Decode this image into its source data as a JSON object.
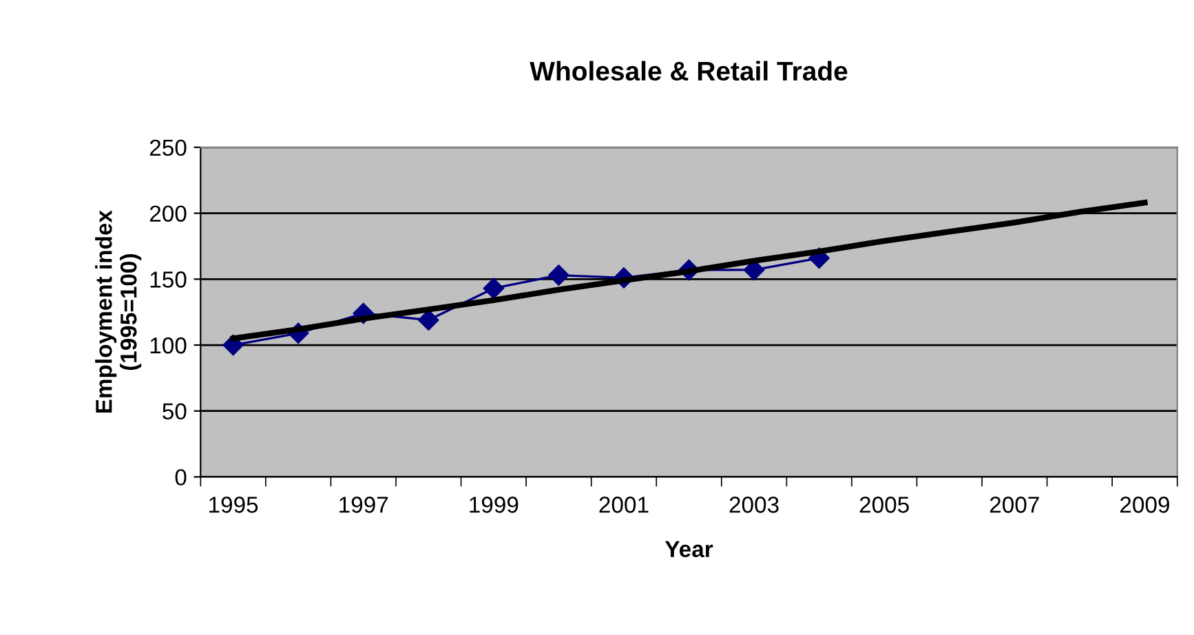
{
  "chart_data": {
    "type": "line",
    "title": "Wholesale & Retail Trade",
    "xlabel": "Year",
    "ylabel": "Employment index\n(1995=100)",
    "categories": [
      "1995",
      null,
      "1997",
      null,
      "1999",
      null,
      "2001",
      null,
      "2003",
      null,
      "2005",
      null,
      "2007",
      null,
      "2009"
    ],
    "series": [
      {
        "color": "#000080",
        "marker": "diamond",
        "values": [
          100,
          109,
          124,
          119,
          143,
          153,
          151,
          157,
          157,
          166,
          null,
          null,
          null,
          null,
          null
        ]
      },
      {
        "type": "line",
        "color": "#000000",
        "marker": "none",
        "values": [
          105,
          112,
          120,
          127,
          134,
          142,
          149,
          156,
          164,
          171,
          179,
          186,
          193,
          201,
          208
        ]
      }
    ],
    "ylim": [
      0,
      250
    ],
    "yticks": [
      0,
      50,
      100,
      150,
      200,
      250
    ],
    "grid": "y",
    "legend": false
  }
}
